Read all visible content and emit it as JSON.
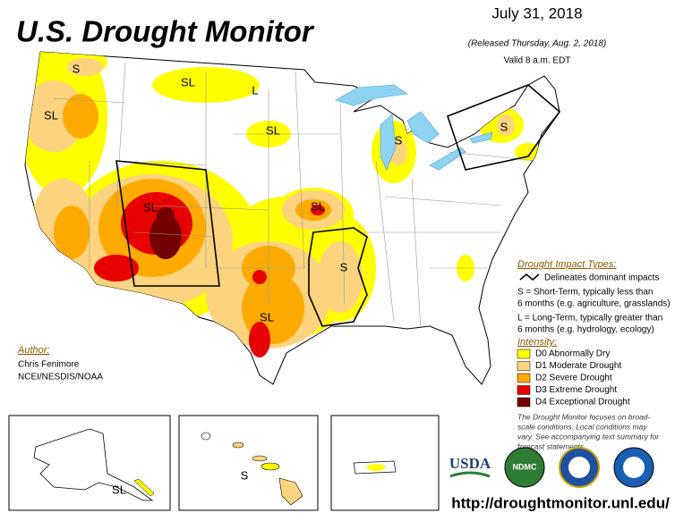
{
  "header": {
    "title": "U.S. Drought Monitor",
    "date": "July 31, 2018",
    "released": "(Released Thursday, Aug. 2, 2018)",
    "valid": "Valid 8 a.m. EDT"
  },
  "map_labels": [
    "S",
    "SL",
    "L",
    "SL",
    "SL",
    "S",
    "S",
    "SL",
    "SL",
    "S",
    "SL",
    "S",
    "SL"
  ],
  "author": {
    "heading": "Author:",
    "name": "Chris Fenimore",
    "org": "NCEI/NESDIS/NOAA"
  },
  "legend": {
    "impact_heading": "Drought Impact Types:",
    "impact_line": "Delineates dominant impacts",
    "short_term": [
      "S = Short-Term, typically less than",
      "6 months (e.g. agriculture, grasslands)"
    ],
    "long_term": [
      "L = Long-Term, typically greater than",
      "6 months (e.g. hydrology, ecology)"
    ],
    "intensity_heading": "Intensity:",
    "intensity": [
      {
        "label": "D0 Abnormally Dry",
        "color": "#ffff00"
      },
      {
        "label": "D1 Moderate Drought",
        "color": "#fcd37f"
      },
      {
        "label": "D2 Severe Drought",
        "color": "#ffaa00"
      },
      {
        "label": "D3 Extreme Drought",
        "color": "#e60000"
      },
      {
        "label": "D4 Exceptional Drought",
        "color": "#730000"
      }
    ]
  },
  "note": [
    "The Drought Monitor focuses on broad-",
    "scale conditions. Local conditions may",
    "vary. See accompanying text summary for",
    "forecast statements."
  ],
  "logos": [
    "USDA",
    "NDMC"
  ],
  "url": "http://droughtmonitor.unl.edu/"
}
